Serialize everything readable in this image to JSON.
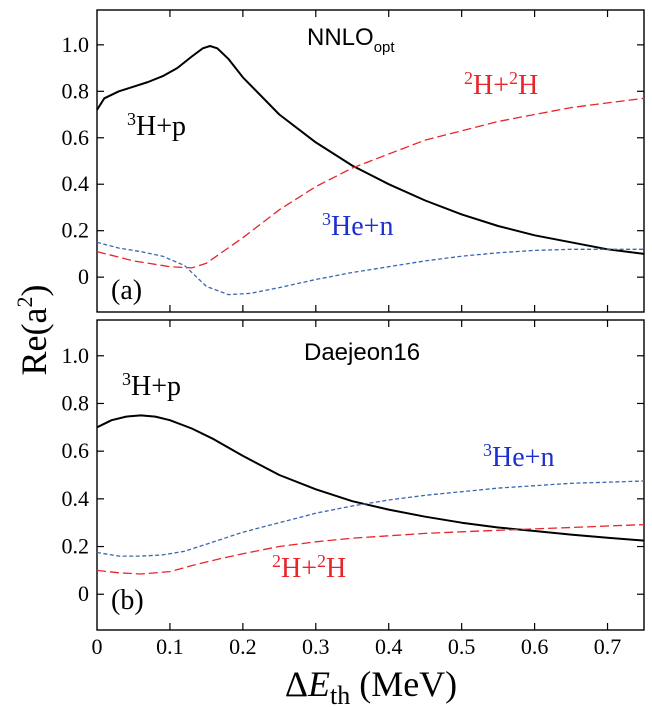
{
  "chart_data": [
    {
      "panel": "(a)",
      "type": "line",
      "title": "NNLO",
      "title_sub": "opt",
      "xlim": [
        0,
        0.75
      ],
      "ylim": [
        -0.15,
        1.15
      ],
      "yticks": [
        0,
        0.2,
        0.4,
        0.6,
        0.8,
        1.0
      ],
      "ytick_labels": [
        "0",
        "0.2",
        "0.4",
        "0.6",
        "0.8",
        "1.0"
      ],
      "series": [
        {
          "label_sup": "3",
          "label_text": "H+p",
          "color": "#000000",
          "style": "solid",
          "x": [
            0,
            0.01,
            0.03,
            0.05,
            0.07,
            0.09,
            0.11,
            0.13,
            0.145,
            0.155,
            0.165,
            0.18,
            0.2,
            0.25,
            0.3,
            0.35,
            0.4,
            0.45,
            0.5,
            0.55,
            0.6,
            0.65,
            0.7,
            0.75
          ],
          "y": [
            0.72,
            0.77,
            0.8,
            0.82,
            0.84,
            0.865,
            0.9,
            0.95,
            0.985,
            0.995,
            0.985,
            0.94,
            0.86,
            0.7,
            0.58,
            0.48,
            0.4,
            0.33,
            0.27,
            0.22,
            0.18,
            0.15,
            0.12,
            0.1
          ]
        },
        {
          "label_sup": "2",
          "label_text": "H+",
          "label_sup2": "2",
          "label_text2": "H",
          "color": "#e8252b",
          "style": "dashed",
          "x": [
            0,
            0.05,
            0.1,
            0.13,
            0.15,
            0.2,
            0.25,
            0.3,
            0.35,
            0.4,
            0.45,
            0.5,
            0.55,
            0.6,
            0.65,
            0.7,
            0.75
          ],
          "y": [
            0.11,
            0.07,
            0.045,
            0.04,
            0.06,
            0.17,
            0.29,
            0.39,
            0.47,
            0.53,
            0.59,
            0.63,
            0.67,
            0.7,
            0.73,
            0.75,
            0.77
          ]
        },
        {
          "label_sup": "3",
          "label_text": "He+n",
          "color": "#3a68b0",
          "style": "dotted",
          "x": [
            0,
            0.03,
            0.06,
            0.09,
            0.12,
            0.15,
            0.18,
            0.21,
            0.25,
            0.3,
            0.35,
            0.4,
            0.45,
            0.5,
            0.55,
            0.6,
            0.65,
            0.7,
            0.75
          ],
          "y": [
            0.15,
            0.125,
            0.11,
            0.09,
            0.05,
            -0.04,
            -0.075,
            -0.07,
            -0.045,
            -0.01,
            0.02,
            0.045,
            0.07,
            0.09,
            0.105,
            0.115,
            0.12,
            0.12,
            0.12
          ]
        }
      ]
    },
    {
      "panel": "(b)",
      "type": "line",
      "title": "Daejeon16",
      "xlim": [
        0,
        0.75
      ],
      "ylim": [
        -0.15,
        1.15
      ],
      "yticks": [
        0,
        0.2,
        0.4,
        0.6,
        0.8,
        1.0
      ],
      "ytick_labels": [
        "0",
        "0.2",
        "0.4",
        "0.6",
        "0.8",
        "1.0"
      ],
      "xticks": [
        0,
        0.1,
        0.2,
        0.3,
        0.4,
        0.5,
        0.6,
        0.7
      ],
      "xtick_labels": [
        "0",
        "0.1",
        "0.2",
        "0.3",
        "0.4",
        "0.5",
        "0.6",
        "0.7"
      ],
      "xlabel_pre": "Δ",
      "xlabel_italic": "E",
      "xlabel_sub": "th",
      "xlabel_post": " (MeV)",
      "series": [
        {
          "label_sup": "3",
          "label_text": "H+p",
          "color": "#000000",
          "style": "solid",
          "x": [
            0,
            0.02,
            0.04,
            0.06,
            0.08,
            0.1,
            0.13,
            0.16,
            0.2,
            0.25,
            0.3,
            0.35,
            0.4,
            0.45,
            0.5,
            0.55,
            0.6,
            0.65,
            0.7,
            0.75
          ],
          "y": [
            0.7,
            0.73,
            0.745,
            0.75,
            0.745,
            0.73,
            0.695,
            0.65,
            0.58,
            0.5,
            0.44,
            0.39,
            0.355,
            0.325,
            0.3,
            0.28,
            0.265,
            0.25,
            0.237,
            0.225
          ]
        },
        {
          "label_sup": "3",
          "label_text": "He+n",
          "color": "#3a68b0",
          "style": "dotted",
          "x": [
            0,
            0.03,
            0.06,
            0.09,
            0.12,
            0.15,
            0.2,
            0.25,
            0.3,
            0.35,
            0.4,
            0.45,
            0.5,
            0.55,
            0.6,
            0.65,
            0.7,
            0.75
          ],
          "y": [
            0.175,
            0.16,
            0.16,
            0.165,
            0.18,
            0.21,
            0.26,
            0.3,
            0.34,
            0.37,
            0.395,
            0.415,
            0.43,
            0.445,
            0.455,
            0.465,
            0.47,
            0.475
          ]
        },
        {
          "label_sup": "2",
          "label_text": "H+",
          "label_sup2": "2",
          "label_text2": "H",
          "color": "#e8252b",
          "style": "dashed",
          "x": [
            0,
            0.03,
            0.06,
            0.1,
            0.13,
            0.17,
            0.2,
            0.25,
            0.3,
            0.35,
            0.4,
            0.45,
            0.5,
            0.55,
            0.6,
            0.65,
            0.7,
            0.75
          ],
          "y": [
            0.1,
            0.09,
            0.085,
            0.095,
            0.12,
            0.15,
            0.17,
            0.2,
            0.22,
            0.235,
            0.245,
            0.255,
            0.262,
            0.268,
            0.274,
            0.28,
            0.286,
            0.292
          ]
        }
      ]
    }
  ],
  "ylabel": {
    "pre": "Re(a",
    "sup": "2",
    "post": ")"
  }
}
